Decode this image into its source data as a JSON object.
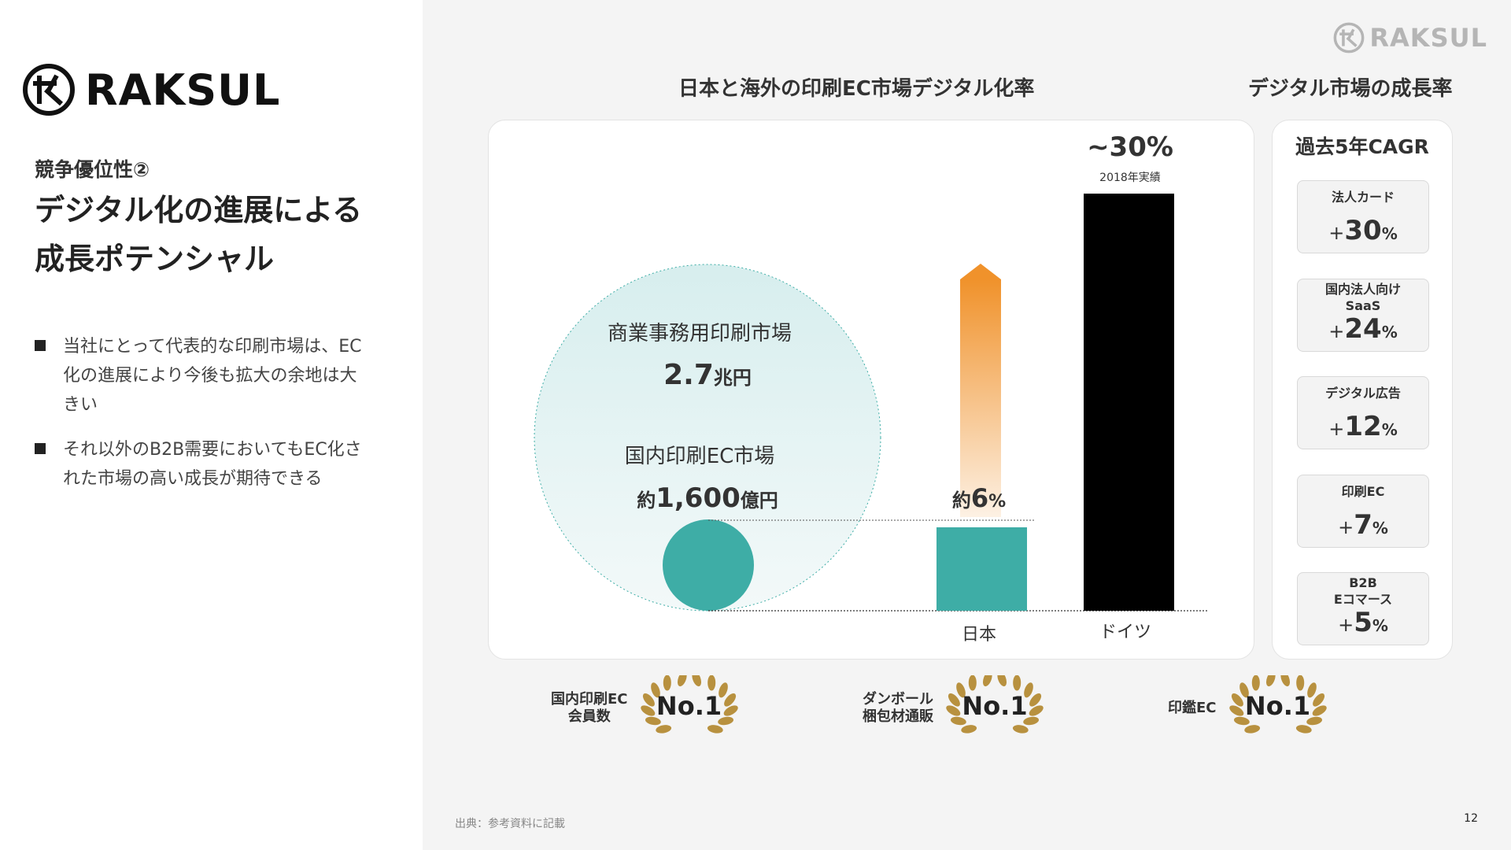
{
  "brand": {
    "name": "RAKSUL"
  },
  "left": {
    "eyebrow": "競争優位性②",
    "headline_line1": "デジタル化の進展による",
    "headline_line2": "成長ポテンシャル",
    "bullets": [
      {
        "line1": "当社にとって代表的な印刷市場は、EC",
        "line2": "化の進展により今後も拡大の余地は大",
        "line3": "きい"
      },
      {
        "line1": "それ以外のB2B需要においてもEC化さ",
        "line2": "れた市場の高い成長が期待できる"
      }
    ]
  },
  "chart_section": {
    "title": "日本と海外の印刷EC市場デジタル化率",
    "circle_large_label": "商業事務用印刷市場",
    "circle_large_value": "2.7",
    "circle_large_unit": "兆円",
    "circle_small_label": "国内印刷EC市場",
    "circle_small_prefix": "約",
    "circle_small_value": "1,600",
    "circle_small_unit": "億円",
    "japan_value_prefix": "約",
    "japan_value": "6",
    "japan_value_unit": "%",
    "germany_value": "~30%",
    "germany_note": "2018年実績"
  },
  "chart_data": {
    "type": "bar",
    "categories": [
      "日本",
      "ドイツ"
    ],
    "values": [
      6,
      30
    ],
    "ylim": [
      0,
      30
    ],
    "colors": [
      "#3eada6",
      "#000000"
    ],
    "title": "日本と海外の印刷EC市場デジタル化率"
  },
  "cagr": {
    "section_title": "デジタル市場の成長率",
    "header": "過去5年CAGR",
    "items": [
      {
        "label1": "法人カード",
        "label2": "",
        "value": "30"
      },
      {
        "label1": "国内法人向け",
        "label2": "SaaS",
        "value": "24"
      },
      {
        "label1": "デジタル広告",
        "label2": "",
        "value": "12"
      },
      {
        "label1": "印刷EC",
        "label2": "",
        "value": "7"
      },
      {
        "label1": "B2B",
        "label2": "Eコマース",
        "value": "5"
      }
    ],
    "plus": "+",
    "percent": "%"
  },
  "awards": [
    {
      "label1": "国内印刷EC",
      "label2": "会員数",
      "rank": "No.1"
    },
    {
      "label1": "ダンボール",
      "label2": "梱包材通販",
      "rank": "No.1"
    },
    {
      "label1": "印鑑EC",
      "label2": "",
      "rank": "No.1"
    }
  ],
  "colors": {
    "teal": "#3eada6",
    "orange": "#f0922b",
    "gold": "#b8913f",
    "black": "#000000"
  },
  "footer": {
    "source": "出典：参考資料に記載",
    "page_number": "12"
  }
}
